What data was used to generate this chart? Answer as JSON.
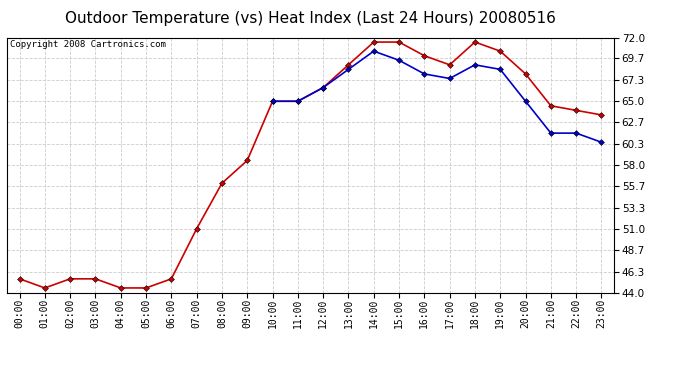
{
  "title": "Outdoor Temperature (vs) Heat Index (Last 24 Hours) 20080516",
  "copyright": "Copyright 2008 Cartronics.com",
  "hours": [
    "00:00",
    "01:00",
    "02:00",
    "03:00",
    "04:00",
    "05:00",
    "06:00",
    "07:00",
    "08:00",
    "09:00",
    "10:00",
    "11:00",
    "12:00",
    "13:00",
    "14:00",
    "15:00",
    "16:00",
    "17:00",
    "18:00",
    "19:00",
    "20:00",
    "21:00",
    "22:00",
    "23:00"
  ],
  "temp": [
    45.5,
    44.5,
    45.5,
    45.5,
    44.5,
    44.5,
    45.5,
    51.0,
    56.0,
    58.5,
    65.0,
    65.0,
    66.5,
    69.0,
    71.5,
    71.5,
    70.0,
    69.0,
    71.5,
    70.5,
    68.0,
    64.5,
    64.0,
    63.5
  ],
  "heat_index": [
    null,
    null,
    null,
    null,
    null,
    null,
    null,
    null,
    null,
    null,
    65.0,
    65.0,
    66.5,
    68.5,
    70.5,
    69.5,
    68.0,
    67.5,
    69.0,
    68.5,
    65.0,
    61.5,
    61.5,
    60.5
  ],
  "temp_color": "#cc0000",
  "heat_index_color": "#0000cc",
  "bg_color": "#ffffff",
  "plot_bg_color": "#ffffff",
  "grid_color": "#cccccc",
  "ymin": 44.0,
  "ymax": 72.0,
  "yticks": [
    44.0,
    46.3,
    48.7,
    51.0,
    53.3,
    55.7,
    58.0,
    60.3,
    62.7,
    65.0,
    67.3,
    69.7,
    72.0
  ],
  "title_fontsize": 11,
  "copyright_fontsize": 6.5
}
